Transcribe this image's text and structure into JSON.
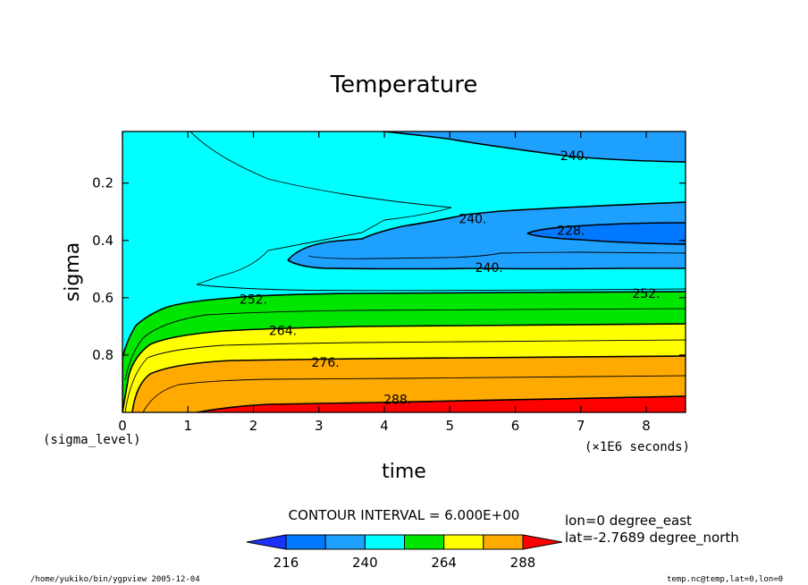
{
  "chart_data": {
    "type": "contour",
    "title": "Temperature",
    "xlabel": "time",
    "x_units": "(×1E6 seconds)",
    "ylabel": "sigma",
    "y_units": "(sigma_level)",
    "xlim": [
      0,
      8.6
    ],
    "ylim": [
      1.0,
      0.02
    ],
    "x_ticks": [
      0,
      1,
      2,
      3,
      4,
      5,
      6,
      7,
      8
    ],
    "y_ticks": [
      0.2,
      0.4,
      0.6,
      0.8
    ],
    "x_tick_labels": [
      "0",
      "1",
      "2",
      "3",
      "4",
      "5",
      "6",
      "7",
      "8"
    ],
    "y_tick_labels": [
      "0.2",
      "0.4",
      "0.6",
      "0.8"
    ],
    "contour_interval_text": "CONTOUR INTERVAL = 6.000E+00",
    "contour_labels": [
      {
        "text": "240.",
        "x": 6.9,
        "y": 0.105
      },
      {
        "text": "240.",
        "x": 5.35,
        "y": 0.325
      },
      {
        "text": "228.",
        "x": 6.85,
        "y": 0.365
      },
      {
        "text": "240.",
        "x": 5.6,
        "y": 0.495
      },
      {
        "text": "252.",
        "x": 8.0,
        "y": 0.585
      },
      {
        "text": "252.",
        "x": 2.0,
        "y": 0.605
      },
      {
        "text": "264.",
        "x": 2.45,
        "y": 0.715
      },
      {
        "text": "276.",
        "x": 3.1,
        "y": 0.825
      },
      {
        "text": "288.",
        "x": 4.2,
        "y": 0.955
      }
    ],
    "colorbar": {
      "levels": [
        216,
        228,
        240,
        252,
        264,
        276,
        288
      ],
      "tick_labels": [
        "216",
        "240",
        "264",
        "288"
      ],
      "colors": [
        "#1e32ff",
        "#0078ff",
        "#1ea0ff",
        "#00ffff",
        "#00e600",
        "#ffff00",
        "#ffaa00",
        "#ff0000"
      ]
    },
    "annotations": {
      "lon": "lon=0 degree_east",
      "lat": "lat=-2.7689 degree_north",
      "footer_left": "/home/yukiko/bin/ygpview  2005-12-04",
      "footer_right": "temp.nc@temp,lat=0,lon=0"
    },
    "region_colors": {
      "c216": "#1e32ff",
      "c228": "#0078ff",
      "c240": "#1ea0ff",
      "c252": "#00ffff",
      "c264": "#00e600",
      "c276": "#ffff00",
      "c288": "#ffaa00",
      "c300": "#ff0000"
    }
  }
}
